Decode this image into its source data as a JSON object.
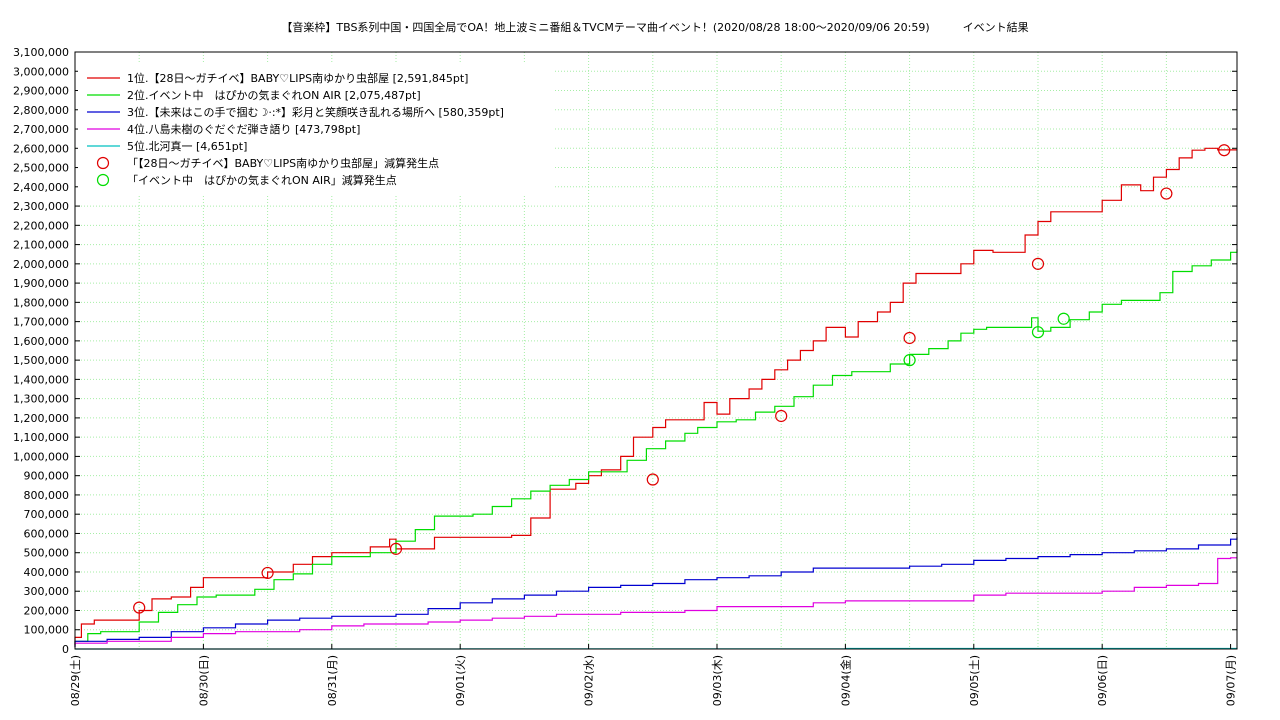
{
  "chart_data": {
    "type": "line",
    "title": "【音楽枠】TBS系列中国・四国全局でOA！地上波ミニ番組＆TVCMテーマ曲イベント！(2020/08/28 18:00～2020/09/06 20:59)　　　イベント結果",
    "xlabel": "",
    "ylabel": "",
    "x_ticks": [
      "08/29(土)",
      "08/30(日)",
      "08/31(月)",
      "09/01(火)",
      "09/02(水)",
      "09/03(木)",
      "09/04(金)",
      "09/05(土)",
      "09/06(日)",
      "09/07(月)"
    ],
    "xlim": [
      0,
      9.05
    ],
    "ylim": [
      0,
      3100000
    ],
    "y_ticks": [
      "0",
      "100,000",
      "200,000",
      "300,000",
      "400,000",
      "500,000",
      "600,000",
      "700,000",
      "800,000",
      "900,000",
      "1,000,000",
      "1,100,000",
      "1,200,000",
      "1,300,000",
      "1,400,000",
      "1,500,000",
      "1,600,000",
      "1,700,000",
      "1,800,000",
      "1,900,000",
      "2,000,000",
      "2,100,000",
      "2,200,000",
      "2,300,000",
      "2,400,000",
      "2,500,000",
      "2,600,000",
      "2,700,000",
      "2,800,000",
      "2,900,000",
      "3,000,000",
      "3,100,000"
    ],
    "grid": true,
    "legend_position": "top-left",
    "series": [
      {
        "name": "1位.【28日～ガチイベ】BABY♡LIPS南ゆかり虫部屋 [2,591,845pt]",
        "color": "#e00000",
        "x": [
          -0.2,
          -0.05,
          0.05,
          0.15,
          0.3,
          0.5,
          0.6,
          0.75,
          0.9,
          1.0,
          1.15,
          1.3,
          1.5,
          1.7,
          1.85,
          2.0,
          2.15,
          2.3,
          2.45,
          2.5,
          2.55,
          2.65,
          2.8,
          3.0,
          3.2,
          3.4,
          3.55,
          3.7,
          3.8,
          3.9,
          4.0,
          4.1,
          4.25,
          4.35,
          4.5,
          4.6,
          4.75,
          4.9,
          5.0,
          5.1,
          5.25,
          5.35,
          5.45,
          5.55,
          5.65,
          5.75,
          5.85,
          6.0,
          6.1,
          6.25,
          6.35,
          6.45,
          6.55,
          6.65,
          6.75,
          6.9,
          7.0,
          7.15,
          7.3,
          7.4,
          7.5,
          7.6,
          7.7,
          7.85,
          8.0,
          8.15,
          8.3,
          8.4,
          8.5,
          8.6,
          8.7,
          8.8,
          8.9,
          9.0,
          9.05
        ],
        "y": [
          20000,
          60000,
          130000,
          150000,
          150000,
          200000,
          260000,
          270000,
          320000,
          370000,
          370000,
          370000,
          400000,
          440000,
          480000,
          500000,
          500000,
          530000,
          570000,
          520000,
          520000,
          520000,
          580000,
          580000,
          580000,
          590000,
          680000,
          830000,
          830000,
          860000,
          900000,
          930000,
          1000000,
          1100000,
          1150000,
          1190000,
          1190000,
          1280000,
          1220000,
          1300000,
          1350000,
          1400000,
          1450000,
          1500000,
          1550000,
          1600000,
          1670000,
          1620000,
          1700000,
          1750000,
          1800000,
          1900000,
          1950000,
          1950000,
          1950000,
          2000000,
          2070000,
          2060000,
          2060000,
          2150000,
          2220000,
          2270000,
          2270000,
          2270000,
          2330000,
          2410000,
          2380000,
          2450000,
          2490000,
          2550000,
          2590000,
          2600000,
          2591845,
          2591845,
          2591845
        ]
      },
      {
        "name": "2位.イベント中　はぴかの気まぐれON AIR [2,075,487pt]",
        "color": "#00dd00",
        "x": [
          -0.2,
          -0.05,
          0.1,
          0.2,
          0.35,
          0.5,
          0.65,
          0.8,
          0.95,
          1.1,
          1.25,
          1.4,
          1.55,
          1.7,
          1.85,
          2.0,
          2.15,
          2.3,
          2.5,
          2.65,
          2.8,
          2.95,
          3.1,
          3.25,
          3.4,
          3.55,
          3.7,
          3.85,
          4.0,
          4.15,
          4.3,
          4.45,
          4.6,
          4.75,
          4.85,
          5.0,
          5.15,
          5.3,
          5.45,
          5.6,
          5.75,
          5.9,
          6.05,
          6.2,
          6.35,
          6.5,
          6.65,
          6.8,
          6.9,
          7.0,
          7.1,
          7.2,
          7.3,
          7.45,
          7.5,
          7.6,
          7.75,
          7.9,
          8.0,
          8.15,
          8.3,
          8.45,
          8.55,
          8.7,
          8.85,
          9.0,
          9.05
        ],
        "y": [
          10000,
          40000,
          80000,
          90000,
          90000,
          140000,
          190000,
          230000,
          270000,
          280000,
          280000,
          310000,
          360000,
          390000,
          440000,
          480000,
          480000,
          500000,
          560000,
          620000,
          690000,
          690000,
          700000,
          740000,
          780000,
          820000,
          850000,
          880000,
          920000,
          920000,
          980000,
          1040000,
          1080000,
          1120000,
          1150000,
          1180000,
          1190000,
          1230000,
          1260000,
          1310000,
          1370000,
          1420000,
          1440000,
          1440000,
          1480000,
          1530000,
          1560000,
          1600000,
          1640000,
          1660000,
          1670000,
          1670000,
          1670000,
          1720000,
          1650000,
          1670000,
          1710000,
          1750000,
          1790000,
          1810000,
          1810000,
          1850000,
          1960000,
          1990000,
          2020000,
          2060000,
          2075487
        ]
      },
      {
        "name": "3位.【未来はこの手で掴む☽·:*】彩月と笑顔咲き乱れる場所へ [580,359pt]",
        "color": "#0000d0",
        "x": [
          -0.2,
          0.0,
          0.25,
          0.5,
          0.75,
          1.0,
          1.25,
          1.5,
          1.75,
          2.0,
          2.25,
          2.5,
          2.75,
          3.0,
          3.25,
          3.5,
          3.75,
          4.0,
          4.25,
          4.5,
          4.75,
          5.0,
          5.25,
          5.5,
          5.75,
          6.0,
          6.25,
          6.5,
          6.75,
          7.0,
          7.25,
          7.5,
          7.75,
          8.0,
          8.25,
          8.5,
          8.75,
          9.0,
          9.05
        ],
        "y": [
          10000,
          40000,
          50000,
          60000,
          90000,
          110000,
          130000,
          150000,
          160000,
          170000,
          170000,
          180000,
          210000,
          240000,
          260000,
          280000,
          300000,
          320000,
          330000,
          340000,
          360000,
          370000,
          380000,
          400000,
          420000,
          420000,
          420000,
          430000,
          440000,
          460000,
          470000,
          480000,
          490000,
          500000,
          510000,
          520000,
          540000,
          570000,
          580359
        ]
      },
      {
        "name": "4位.八島未樹のぐだぐだ弾き語り [473,798pt]",
        "color": "#e000e0",
        "x": [
          -0.2,
          0.0,
          0.25,
          0.5,
          0.75,
          1.0,
          1.25,
          1.5,
          1.75,
          2.0,
          2.25,
          2.5,
          2.75,
          3.0,
          3.25,
          3.5,
          3.75,
          4.0,
          4.25,
          4.5,
          4.75,
          5.0,
          5.25,
          5.5,
          5.75,
          6.0,
          6.25,
          6.5,
          6.75,
          7.0,
          7.25,
          7.5,
          7.75,
          8.0,
          8.25,
          8.5,
          8.75,
          8.9,
          9.0,
          9.05
        ],
        "y": [
          10000,
          30000,
          40000,
          40000,
          60000,
          80000,
          90000,
          90000,
          100000,
          120000,
          130000,
          130000,
          140000,
          150000,
          160000,
          170000,
          180000,
          180000,
          190000,
          190000,
          200000,
          220000,
          220000,
          220000,
          240000,
          250000,
          250000,
          250000,
          250000,
          280000,
          290000,
          290000,
          290000,
          300000,
          320000,
          330000,
          340000,
          470000,
          473798,
          473798
        ]
      },
      {
        "name": "5位.北河真一 [4,651pt]",
        "color": "#00c0c0",
        "x": [
          -0.2,
          3.0,
          6.0,
          9.05
        ],
        "y": [
          0,
          1000,
          2500,
          4651
        ]
      }
    ],
    "markers": [
      {
        "name": "「【28日～ガチイベ】BABY♡LIPS南ゆかり虫部屋」減算発生点",
        "color": "#e00000",
        "points": [
          [
            0.5,
            215000
          ],
          [
            1.5,
            395000
          ],
          [
            2.5,
            520000
          ],
          [
            4.5,
            880000
          ],
          [
            5.5,
            1210000
          ],
          [
            6.5,
            1615000
          ],
          [
            7.5,
            2000000
          ],
          [
            8.5,
            2365000
          ],
          [
            8.95,
            2590000
          ]
        ]
      },
      {
        "name": "「イベント中　はぴかの気まぐれON AIR」減算発生点",
        "color": "#00dd00",
        "points": [
          [
            6.5,
            1500000
          ],
          [
            7.5,
            1645000
          ],
          [
            7.7,
            1715000
          ]
        ]
      }
    ]
  }
}
